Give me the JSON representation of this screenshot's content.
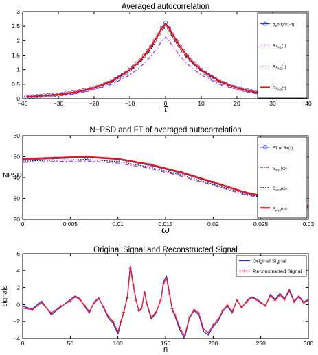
{
  "chart_data": [
    {
      "type": "line",
      "title": "Averaged autocorrelation",
      "xlabel": "τ",
      "ylabel": "",
      "xlim": [
        -40,
        40
      ],
      "ylim": [
        0,
        3
      ],
      "xticks": [
        -40,
        -30,
        -20,
        -10,
        0,
        10,
        20,
        30,
        40
      ],
      "yticks": [
        0,
        0.5,
        1,
        1.5,
        2,
        2.5,
        3
      ],
      "tick_labels_x": [
        "−40",
        "−30",
        "−20",
        "−10",
        "0",
        "10",
        "20",
        "30",
        "40"
      ],
      "tick_labels_y": [
        "0",
        "0.5",
        "1",
        "1.5",
        "2",
        "2.5",
        "3"
      ],
      "legend_position": "top-right",
      "series": [
        {
          "name": "σ²h(τ)*h(−τ)",
          "color": "#3344cc",
          "style": "line-circle",
          "x": [
            -39,
            -38,
            -37,
            -36,
            -35,
            -34,
            -33,
            -32,
            -31,
            -30,
            -29,
            -28,
            -27,
            -26,
            -25,
            -24,
            -23,
            -22,
            -21,
            -20,
            -19,
            -18,
            -17,
            -16,
            -15,
            -14,
            -13,
            -12,
            -11,
            -10,
            -9,
            -8,
            -7,
            -6,
            -5,
            -4,
            -3,
            -2,
            -1,
            0,
            1,
            2,
            3,
            4,
            5,
            6,
            7,
            8,
            9,
            10,
            11,
            12,
            13,
            14,
            15,
            16,
            17,
            18,
            19,
            20,
            21,
            22,
            23,
            24,
            25,
            26,
            27,
            28,
            29,
            30,
            31,
            32,
            33,
            34,
            35,
            36,
            37,
            38,
            39
          ],
          "y": [
            0.07,
            0.08,
            0.08,
            0.09,
            0.1,
            0.11,
            0.12,
            0.13,
            0.14,
            0.15,
            0.16,
            0.18,
            0.19,
            0.21,
            0.23,
            0.26,
            0.28,
            0.31,
            0.34,
            0.37,
            0.41,
            0.45,
            0.5,
            0.55,
            0.61,
            0.67,
            0.74,
            0.82,
            0.9,
            1.0,
            1.1,
            1.22,
            1.34,
            1.48,
            1.64,
            1.81,
            2.0,
            2.21,
            2.44,
            2.62,
            2.44,
            2.21,
            2.0,
            1.81,
            1.64,
            1.48,
            1.34,
            1.22,
            1.1,
            1.0,
            0.9,
            0.82,
            0.74,
            0.67,
            0.61,
            0.55,
            0.5,
            0.45,
            0.41,
            0.37,
            0.34,
            0.31,
            0.28,
            0.26,
            0.23,
            0.21,
            0.19,
            0.18,
            0.16,
            0.15,
            0.14,
            0.13,
            0.12,
            0.11,
            0.1,
            0.09,
            0.08,
            0.08,
            0.07
          ]
        },
        {
          "name": "R̃x_N1(τ)",
          "color": "#aa33dd",
          "style": "dashdot",
          "x": [
            -39,
            -35,
            -30,
            -25,
            -20,
            -15,
            -10,
            -8,
            -6,
            -4,
            -2,
            -1,
            0,
            1,
            2,
            4,
            6,
            8,
            10,
            15,
            20,
            25,
            30,
            35,
            39
          ],
          "y": [
            0.06,
            0.08,
            0.12,
            0.19,
            0.31,
            0.5,
            0.82,
            1.0,
            1.21,
            1.48,
            1.81,
            2.0,
            2.12,
            2.0,
            1.81,
            1.48,
            1.21,
            1.0,
            0.82,
            0.5,
            0.31,
            0.19,
            0.12,
            0.08,
            0.06
          ]
        },
        {
          "name": "R̃x_N2(τ)",
          "color": "#111111",
          "style": "dotted",
          "x": [
            -39,
            -35,
            -30,
            -25,
            -20,
            -15,
            -10,
            -8,
            -6,
            -4,
            -2,
            -1,
            0,
            1,
            2,
            4,
            6,
            8,
            10,
            15,
            20,
            25,
            30,
            35,
            39
          ],
          "y": [
            0.07,
            0.09,
            0.14,
            0.22,
            0.36,
            0.58,
            0.96,
            1.17,
            1.41,
            1.73,
            2.12,
            2.34,
            2.48,
            2.34,
            2.12,
            1.73,
            1.41,
            1.17,
            0.96,
            0.58,
            0.36,
            0.22,
            0.14,
            0.09,
            0.07
          ]
        },
        {
          "name": "R̃x_N3(τ)",
          "color": "#ee1111",
          "style": "thick",
          "x": [
            -39,
            -35,
            -30,
            -25,
            -20,
            -15,
            -10,
            -8,
            -6,
            -4,
            -2,
            -1,
            0,
            1,
            2,
            4,
            6,
            8,
            10,
            15,
            20,
            25,
            30,
            35,
            39
          ],
          "y": [
            0.07,
            0.1,
            0.15,
            0.23,
            0.37,
            0.61,
            1.0,
            1.21,
            1.48,
            1.81,
            2.21,
            2.44,
            2.56,
            2.44,
            2.21,
            1.81,
            1.48,
            1.21,
            1.0,
            0.61,
            0.37,
            0.23,
            0.15,
            0.1,
            0.07
          ]
        }
      ],
      "legend_labels": [
        {
          "text": "σ",
          "sub": "n",
          "rest": "h(τ)*h(−τ)"
        },
        {
          "text": "Rx",
          "sub": "N1",
          "rest": "(τ)"
        },
        {
          "text": "Rx",
          "sub": "N2",
          "rest": "(τ)"
        },
        {
          "text": "Rx",
          "sub": "N3",
          "rest": "(τ)"
        }
      ]
    },
    {
      "type": "line",
      "title": "N−PSD and FT of averaged autocorrelation",
      "xlabel": "ω",
      "ylabel": "NPSD",
      "xlim": [
        0,
        0.03
      ],
      "ylim": [
        20,
        60
      ],
      "xticks": [
        0,
        0.005,
        0.01,
        0.015,
        0.02,
        0.025,
        0.03
      ],
      "yticks": [
        20,
        30,
        40,
        50,
        60
      ],
      "tick_labels_x": [
        "0",
        "0.005",
        "0.01",
        "0.015",
        "0.02",
        "0.025",
        "0.03"
      ],
      "tick_labels_y": [
        "20",
        "30",
        "40",
        "50",
        "60"
      ],
      "legend_position": "top-right",
      "series": [
        {
          "name": "FT of Rx(τ)",
          "color": "#3344cc",
          "style": "line-circle",
          "x": [
            0,
            0.00333,
            0.00667,
            0.01,
            0.01333,
            0.01667,
            0.02,
            0.02333,
            0.02667,
            0.03
          ],
          "y": [
            48.5,
            49.0,
            49.6,
            48.6,
            45.8,
            42.0,
            37.4,
            32.6,
            29.5,
            26.0
          ]
        },
        {
          "name": "S x_N1(ω)",
          "color": "#aa33dd",
          "style": "dashdot",
          "x": [
            0,
            0.00333,
            0.00667,
            0.01,
            0.01333,
            0.01667,
            0.02,
            0.02333,
            0.02667,
            0.03
          ],
          "y": [
            47.2,
            47.6,
            47.9,
            46.9,
            44.4,
            40.6,
            36.2,
            31.8,
            28.8,
            25.7
          ]
        },
        {
          "name": "S x_N2(ω)",
          "color": "#111111",
          "style": "dotted",
          "x": [
            0,
            0.00333,
            0.00667,
            0.01,
            0.01333,
            0.01667,
            0.02,
            0.02333,
            0.02667,
            0.03
          ],
          "y": [
            47.8,
            48.3,
            48.6,
            47.6,
            45.0,
            41.2,
            36.7,
            32.2,
            29.1,
            25.8
          ]
        },
        {
          "name": "S x_N3(ω)",
          "color": "#ee1111",
          "style": "thick",
          "x": [
            0,
            0.00333,
            0.00667,
            0.01,
            0.01333,
            0.01667,
            0.02,
            0.02333,
            0.02667,
            0.03
          ],
          "y": [
            49.0,
            49.5,
            50.0,
            49.0,
            46.3,
            42.5,
            37.8,
            33.0,
            29.9,
            26.2
          ]
        }
      ],
      "legend_labels": [
        {
          "text": "FT of Rx(τ)",
          "sub": "",
          "rest": ""
        },
        {
          "text": "S",
          "sub": "xN1",
          "rest": "(ω)"
        },
        {
          "text": "S",
          "sub": "xN2",
          "rest": "(ω)"
        },
        {
          "text": "S",
          "sub": "xN3",
          "rest": "(ω)"
        }
      ]
    },
    {
      "type": "line",
      "title": "Original Signal and Reconstructed Signal",
      "xlabel": "n",
      "ylabel": "signals",
      "xlim": [
        0,
        300
      ],
      "ylim": [
        -4,
        6
      ],
      "xticks": [
        0,
        50,
        100,
        150,
        200,
        250,
        300
      ],
      "yticks": [
        -4,
        -2,
        0,
        2,
        4,
        6
      ],
      "tick_labels_x": [
        "0",
        "50",
        "100",
        "150",
        "200",
        "250",
        "300"
      ],
      "tick_labels_y": [
        "−4",
        "−2",
        "0",
        "2",
        "4",
        "6"
      ],
      "legend_position": "top-right",
      "series": [
        {
          "name": "Original Signal",
          "color": "#2233dd",
          "style": "line",
          "x": [
            0,
            10,
            20,
            30,
            40,
            50,
            55,
            60,
            65,
            70,
            75,
            80,
            85,
            90,
            95,
            100,
            103,
            106,
            110,
            113,
            116,
            119,
            122,
            125,
            128,
            130,
            135,
            140,
            145,
            148,
            151,
            154,
            157,
            160,
            165,
            170,
            175,
            180,
            185,
            190,
            195,
            200,
            205,
            210,
            215,
            220,
            225,
            230,
            235,
            240,
            245,
            250,
            255,
            260,
            265,
            270,
            275,
            280,
            285,
            290,
            295,
            300
          ],
          "y": [
            -0.2,
            -0.5,
            0.4,
            -1.2,
            -0.3,
            0.6,
            1.0,
            0.7,
            -0.2,
            -1.0,
            0.3,
            0.8,
            -0.4,
            -1.6,
            -2.2,
            -3.5,
            -2.2,
            -1.0,
            1.0,
            4.6,
            2.5,
            0.6,
            -0.8,
            -0.5,
            1.6,
            0.2,
            -1.7,
            -1.0,
            0.6,
            2.7,
            3.4,
            1.5,
            -0.6,
            -1.4,
            -3.0,
            -4.0,
            -1.6,
            -0.7,
            -1.2,
            -3.2,
            -3.6,
            -2.6,
            -2.0,
            -0.8,
            -0.2,
            -1.0,
            0.6,
            -0.4,
            0.4,
            0.9,
            0.7,
            0.3,
            -0.2,
            1.2,
            0.6,
            1.3,
            0.7,
            1.8,
            0.4,
            1.0,
            0.3,
            0.6
          ]
        },
        {
          "name": "Reconstructed Signal",
          "color": "#ee2233",
          "style": "line-star",
          "x": [
            0,
            10,
            20,
            30,
            40,
            50,
            55,
            60,
            65,
            70,
            75,
            80,
            85,
            90,
            95,
            100,
            103,
            106,
            110,
            113,
            116,
            119,
            122,
            125,
            128,
            130,
            135,
            140,
            145,
            148,
            151,
            154,
            157,
            160,
            165,
            170,
            175,
            180,
            185,
            190,
            195,
            200,
            205,
            210,
            215,
            220,
            225,
            230,
            235,
            240,
            245,
            250,
            255,
            260,
            265,
            270,
            275,
            280,
            285,
            290,
            295,
            300
          ],
          "y": [
            -0.4,
            -0.6,
            0.2,
            -1.0,
            -0.2,
            0.4,
            0.9,
            0.6,
            -0.1,
            -0.8,
            0.2,
            0.7,
            -0.3,
            -1.4,
            -2.0,
            -3.2,
            -2.0,
            -0.9,
            0.8,
            4.3,
            2.3,
            0.5,
            -0.7,
            -0.4,
            1.4,
            0.3,
            -1.5,
            -0.9,
            0.5,
            2.5,
            3.1,
            1.3,
            -0.5,
            -1.2,
            -2.7,
            -3.7,
            -1.5,
            -0.6,
            -1.0,
            -2.9,
            -3.3,
            -2.4,
            -1.8,
            -0.7,
            -0.1,
            -0.8,
            0.5,
            -0.3,
            0.3,
            0.8,
            0.6,
            0.2,
            -0.1,
            1.0,
            0.5,
            1.1,
            0.6,
            1.6,
            0.3,
            0.9,
            0.2,
            0.5
          ]
        }
      ],
      "legend_labels": [
        {
          "text": "Original Signal",
          "sub": "",
          "rest": ""
        },
        {
          "text": "Reconstructed Signal",
          "sub": "",
          "rest": ""
        }
      ]
    }
  ]
}
